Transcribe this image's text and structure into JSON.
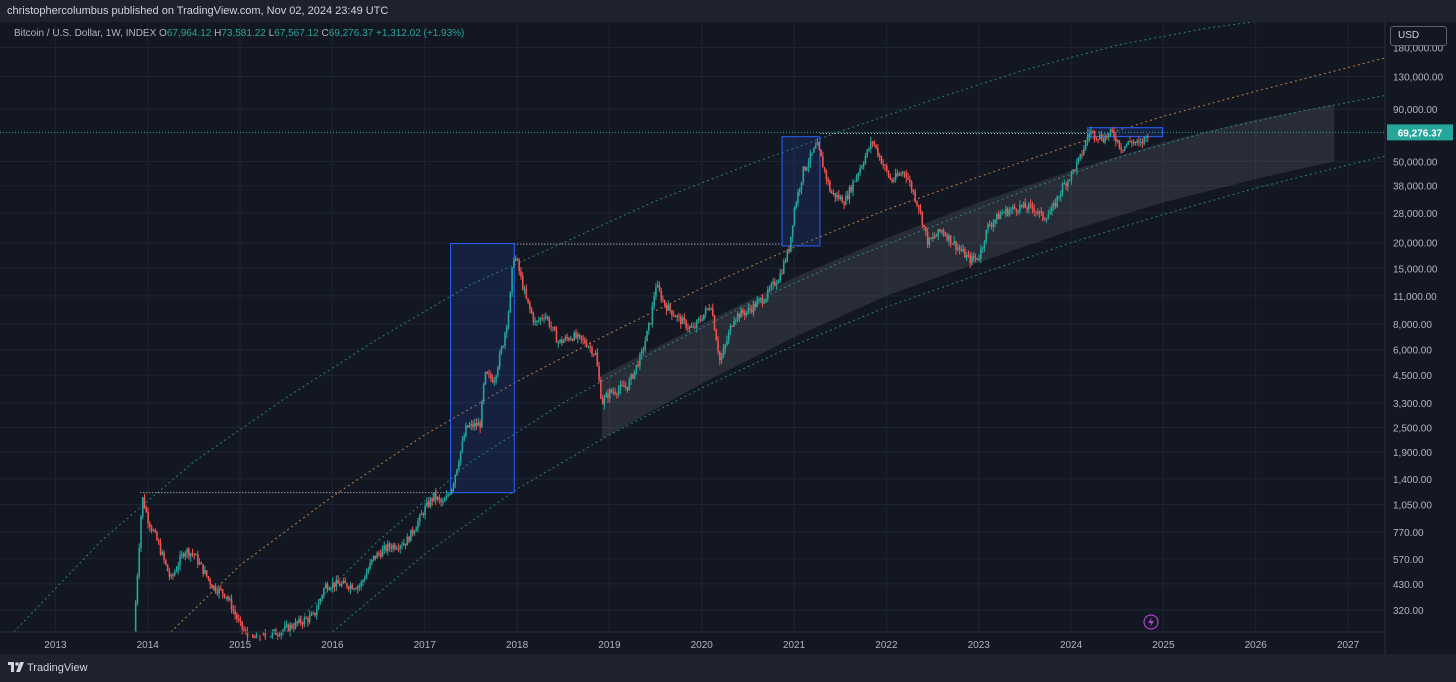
{
  "header": {
    "publish_line": "christophercolumbus published on TradingView.com, Nov 02, 2024 23:49 UTC"
  },
  "legend": {
    "symbol": "Bitcoin / U.S. Dollar, 1W, INDEX",
    "open_label": "O",
    "open": "67,964.12",
    "high_label": "H",
    "high": "73,581.22",
    "low_label": "L",
    "low": "67,567.12",
    "close_label": "C",
    "close": "69,276.37",
    "change": "+1,312.02 (+1.93%)"
  },
  "currency_button": "USD",
  "footer": {
    "brand": "TradingView"
  },
  "colors": {
    "background": "#131722",
    "up": "#26a69a",
    "down": "#ef5350",
    "box": "#2962ff",
    "orange_curve": "#f7a04b",
    "teal_curve": "#26a69a",
    "price_tag": "#26a69a"
  },
  "chart_data": {
    "type": "candlestick",
    "title": "Bitcoin / U.S. Dollar, 1W, INDEX",
    "y_scale": "log",
    "ylim": [
      250,
      240000
    ],
    "xlim": [
      2012.4,
      2027.4
    ],
    "y_tick_labels": [
      "180,000.00",
      "130,000.00",
      "90,000.00",
      "50,000.00",
      "38,000.00",
      "28,000.00",
      "20,000.00",
      "15,000.00",
      "11,000.00",
      "8,000.00",
      "6,000.00",
      "4,500.00",
      "3,300.00",
      "2,500.00",
      "1,900.00",
      "1,400.00",
      "1,050.00",
      "770.00",
      "570.00",
      "430.00",
      "320.00"
    ],
    "y_tick_values": [
      180000,
      130000,
      90000,
      50000,
      38000,
      28000,
      20000,
      15000,
      11000,
      8000,
      6000,
      4500,
      3300,
      2500,
      1900,
      1400,
      1050,
      770,
      570,
      430,
      320
    ],
    "x_tick_labels": [
      "2013",
      "2014",
      "2015",
      "2016",
      "2017",
      "2018",
      "2019",
      "2020",
      "2021",
      "2022",
      "2023",
      "2024",
      "2025",
      "2026",
      "2027"
    ],
    "x_tick_values": [
      2013,
      2014,
      2015,
      2016,
      2017,
      2018,
      2019,
      2020,
      2021,
      2022,
      2023,
      2024,
      2025,
      2026,
      2027
    ],
    "last_price_label": "69,276.37",
    "last_price": 69276.37,
    "grid": true,
    "price_path": [
      [
        2013.85,
        250
      ],
      [
        2013.91,
        700
      ],
      [
        2013.94,
        1150
      ],
      [
        2014.0,
        900
      ],
      [
        2014.1,
        700
      ],
      [
        2014.25,
        450
      ],
      [
        2014.4,
        630
      ],
      [
        2014.5,
        600
      ],
      [
        2014.7,
        420
      ],
      [
        2014.85,
        380
      ],
      [
        2015.0,
        270
      ],
      [
        2015.1,
        230
      ],
      [
        2015.3,
        240
      ],
      [
        2015.5,
        260
      ],
      [
        2015.8,
        300
      ],
      [
        2015.92,
        420
      ],
      [
        2016.0,
        430
      ],
      [
        2016.3,
        420
      ],
      [
        2016.45,
        580
      ],
      [
        2016.6,
        650
      ],
      [
        2016.8,
        690
      ],
      [
        2016.95,
        900
      ],
      [
        2017.0,
        1000
      ],
      [
        2017.1,
        1150
      ],
      [
        2017.2,
        1050
      ],
      [
        2017.3,
        1300
      ],
      [
        2017.45,
        2500
      ],
      [
        2017.6,
        2600
      ],
      [
        2017.65,
        4500
      ],
      [
        2017.75,
        4300
      ],
      [
        2017.85,
        6500
      ],
      [
        2017.92,
        10000
      ],
      [
        2017.96,
        17500
      ],
      [
        2018.0,
        16000
      ],
      [
        2018.1,
        10500
      ],
      [
        2018.2,
        8000
      ],
      [
        2018.3,
        9000
      ],
      [
        2018.45,
        6500
      ],
      [
        2018.6,
        7000
      ],
      [
        2018.75,
        6500
      ],
      [
        2018.85,
        5700
      ],
      [
        2018.92,
        3300
      ],
      [
        2019.0,
        3700
      ],
      [
        2019.2,
        4000
      ],
      [
        2019.35,
        5700
      ],
      [
        2019.45,
        8500
      ],
      [
        2019.5,
        12500
      ],
      [
        2019.6,
        10000
      ],
      [
        2019.75,
        8500
      ],
      [
        2019.9,
        7500
      ],
      [
        2020.1,
        10000
      ],
      [
        2020.2,
        5200
      ],
      [
        2020.35,
        8700
      ],
      [
        2020.5,
        9300
      ],
      [
        2020.7,
        11000
      ],
      [
        2020.85,
        14000
      ],
      [
        2020.95,
        19000
      ],
      [
        2021.0,
        29000
      ],
      [
        2021.1,
        45000
      ],
      [
        2021.25,
        60000
      ],
      [
        2021.3,
        50000
      ],
      [
        2021.4,
        35000
      ],
      [
        2021.55,
        32000
      ],
      [
        2021.7,
        45000
      ],
      [
        2021.85,
        63000
      ],
      [
        2021.95,
        50000
      ],
      [
        2022.05,
        40000
      ],
      [
        2022.2,
        45000
      ],
      [
        2022.35,
        30000
      ],
      [
        2022.45,
        20000
      ],
      [
        2022.6,
        23000
      ],
      [
        2022.75,
        19500
      ],
      [
        2022.9,
        16500
      ],
      [
        2023.0,
        17000
      ],
      [
        2023.1,
        24000
      ],
      [
        2023.25,
        28000
      ],
      [
        2023.45,
        30000
      ],
      [
        2023.6,
        29500
      ],
      [
        2023.7,
        26500
      ],
      [
        2023.8,
        29000
      ],
      [
        2023.9,
        37000
      ],
      [
        2024.0,
        43000
      ],
      [
        2024.1,
        52000
      ],
      [
        2024.2,
        70000
      ],
      [
        2024.35,
        65000
      ],
      [
        2024.45,
        69000
      ],
      [
        2024.55,
        58000
      ],
      [
        2024.65,
        63000
      ],
      [
        2024.75,
        60000
      ],
      [
        2024.84,
        69276
      ]
    ],
    "boxes": [
      {
        "x0": 2017.28,
        "x1": 2017.97,
        "y0": 1200,
        "y1": 19800
      },
      {
        "x0": 2020.87,
        "x1": 2021.28,
        "y0": 19300,
        "y1": 66000
      },
      {
        "x0": 2024.18,
        "x1": 2024.99,
        "y0": 66000,
        "y1": 73000
      }
    ],
    "dotted_levels": [
      {
        "x0": 2013.92,
        "x1": 2017.28,
        "y": 1200
      },
      {
        "x0": 2017.97,
        "x1": 2020.87,
        "y": 19700
      },
      {
        "x0": 2021.28,
        "x1": 2024.18,
        "y": 68500
      }
    ],
    "curves": [
      {
        "name": "",
        "color": "#26a69a",
        "dash": "2,3",
        "points": [
          [
            2012.55,
            250
          ],
          [
            2013.5,
            700
          ],
          [
            2014.5,
            1700
          ],
          [
            2015.5,
            3500
          ],
          [
            2016.5,
            6800
          ],
          [
            2017.5,
            12500
          ],
          [
            2018.5,
            20000
          ],
          [
            2019.5,
            32000
          ],
          [
            2020.5,
            48000
          ],
          [
            2021.5,
            70000
          ],
          [
            2022.5,
            100000
          ],
          [
            2023.5,
            140000
          ],
          [
            2024.5,
            185000
          ],
          [
            2025.5,
            225000
          ],
          [
            2026.2,
            248000
          ]
        ]
      },
      {
        "name": "",
        "color": "#f7a04b",
        "dash": "2,3",
        "points": [
          [
            2014.25,
            250
          ],
          [
            2015.0,
            530
          ],
          [
            2016.0,
            1150
          ],
          [
            2017.0,
            2300
          ],
          [
            2018.0,
            4200
          ],
          [
            2019.0,
            7200
          ],
          [
            2020.0,
            12000
          ],
          [
            2021.0,
            19000
          ],
          [
            2022.0,
            29000
          ],
          [
            2023.0,
            42000
          ],
          [
            2024.0,
            60000
          ],
          [
            2025.0,
            83000
          ],
          [
            2026.0,
            110000
          ],
          [
            2027.4,
            160000
          ]
        ]
      },
      {
        "name": "",
        "color": "#26a69a",
        "dash": "2,3",
        "points": [
          [
            2015.5,
            250
          ],
          [
            2016.5,
            700
          ],
          [
            2017.5,
            1700
          ],
          [
            2018.5,
            3300
          ],
          [
            2019.5,
            5900
          ],
          [
            2020.5,
            10000
          ],
          [
            2021.5,
            16000
          ],
          [
            2022.5,
            24000
          ],
          [
            2023.5,
            36000
          ],
          [
            2024.5,
            52000
          ],
          [
            2025.5,
            70000
          ],
          [
            2026.5,
            88000
          ],
          [
            2027.4,
            105000
          ]
        ]
      },
      {
        "name": "",
        "color": "#26a69a",
        "dash": "2,3",
        "points": [
          [
            2016.0,
            250
          ],
          [
            2017.0,
            600
          ],
          [
            2018.0,
            1250
          ],
          [
            2019.0,
            2300
          ],
          [
            2020.0,
            3900
          ],
          [
            2021.0,
            6300
          ],
          [
            2022.0,
            9700
          ],
          [
            2023.0,
            14000
          ],
          [
            2024.0,
            20000
          ],
          [
            2025.0,
            27500
          ],
          [
            2026.0,
            37000
          ],
          [
            2027.0,
            48000
          ],
          [
            2027.4,
            53000
          ]
        ]
      }
    ],
    "band": {
      "upper": [
        [
          2018.92,
          4500
        ],
        [
          2020.0,
          8000
        ],
        [
          2021.0,
          13500
        ],
        [
          2022.0,
          21000
        ],
        [
          2023.0,
          31500
        ],
        [
          2024.0,
          45000
        ],
        [
          2025.0,
          62000
        ],
        [
          2026.0,
          80000
        ],
        [
          2026.85,
          95000
        ]
      ],
      "lower": [
        [
          2018.92,
          2200
        ],
        [
          2020.0,
          4100
        ],
        [
          2021.0,
          6900
        ],
        [
          2022.0,
          11000
        ],
        [
          2023.0,
          16000
        ],
        [
          2024.0,
          23000
        ],
        [
          2025.0,
          31500
        ],
        [
          2026.0,
          41000
        ],
        [
          2026.85,
          50000
        ]
      ]
    }
  }
}
